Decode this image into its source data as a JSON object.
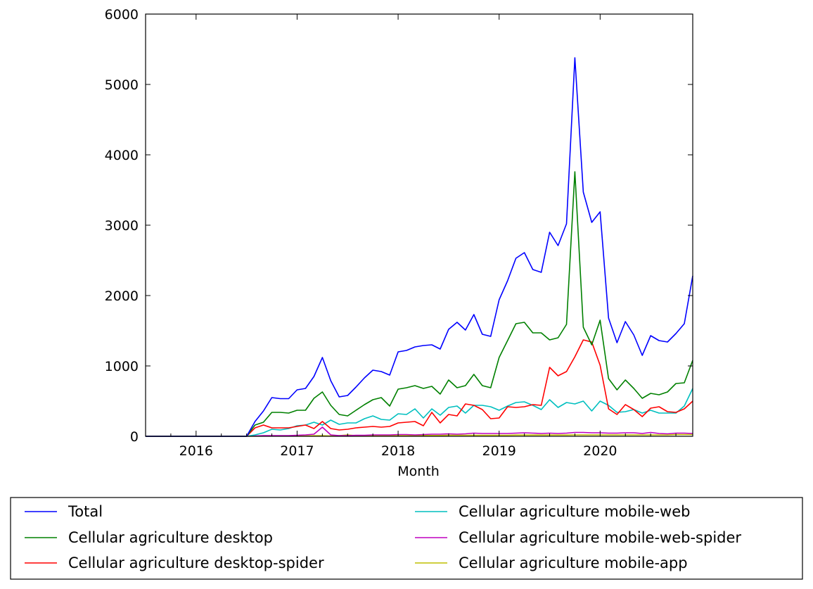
{
  "chart_data": {
    "type": "line",
    "title": "",
    "xlabel": "Month",
    "ylabel": "",
    "ylim": [
      0,
      6000
    ],
    "yticks": [
      "0",
      "1000",
      "2000",
      "3000",
      "4000",
      "5000",
      "6000"
    ],
    "xticks": [
      {
        "label": "2016",
        "date": "2016-01"
      },
      {
        "label": "2017",
        "date": "2017-01"
      },
      {
        "label": "2018",
        "date": "2018-01"
      },
      {
        "label": "2019",
        "date": "2019-01"
      },
      {
        "label": "2020",
        "date": "2020-01"
      }
    ],
    "xlim": [
      "2015-07",
      "2020-12"
    ],
    "grid": false,
    "legend_placement": "below, two columns",
    "x_start": "2015-07",
    "frequency": "monthly",
    "series": [
      {
        "name": "Total",
        "color": "#0000ff",
        "values": [
          0,
          0,
          0,
          0,
          0,
          0,
          0,
          0,
          0,
          0,
          0,
          0,
          0,
          210,
          360,
          550,
          535,
          535,
          660,
          680,
          850,
          1120,
          790,
          560,
          580,
          700,
          830,
          940,
          920,
          870,
          1200,
          1220,
          1270,
          1290,
          1300,
          1240,
          1520,
          1620,
          1510,
          1730,
          1450,
          1420,
          1940,
          2210,
          2530,
          2610,
          2370,
          2330,
          2900,
          2710,
          3020,
          5380,
          3470,
          3040,
          3190,
          1680,
          1330,
          1630,
          1440,
          1150,
          1430,
          1360,
          1340,
          1460,
          1600,
          2280
        ]
      },
      {
        "name": "Cellular agriculture desktop",
        "color": "#008000",
        "values": [
          0,
          0,
          0,
          0,
          0,
          0,
          0,
          0,
          0,
          0,
          0,
          0,
          0,
          160,
          200,
          340,
          340,
          330,
          370,
          370,
          540,
          630,
          440,
          310,
          290,
          370,
          450,
          520,
          550,
          430,
          670,
          690,
          720,
          680,
          710,
          600,
          800,
          690,
          720,
          880,
          720,
          690,
          1120,
          1360,
          1600,
          1620,
          1470,
          1470,
          1370,
          1400,
          1590,
          3760,
          1550,
          1300,
          1650,
          820,
          660,
          800,
          680,
          540,
          610,
          590,
          630,
          750,
          760,
          1080
        ]
      },
      {
        "name": "Cellular agriculture desktop-spider",
        "color": "#ff0000",
        "values": [
          0,
          0,
          0,
          0,
          0,
          0,
          0,
          0,
          0,
          0,
          0,
          0,
          0,
          120,
          160,
          120,
          120,
          120,
          140,
          160,
          110,
          210,
          110,
          90,
          100,
          120,
          130,
          140,
          130,
          140,
          190,
          200,
          210,
          150,
          340,
          190,
          310,
          290,
          460,
          440,
          380,
          250,
          260,
          420,
          410,
          420,
          450,
          440,
          980,
          860,
          920,
          1130,
          1370,
          1340,
          1010,
          390,
          310,
          450,
          380,
          280,
          400,
          420,
          350,
          340,
          390,
          500
        ]
      },
      {
        "name": "Cellular agriculture mobile-web",
        "color": "#00bfbf",
        "values": [
          0,
          0,
          0,
          0,
          0,
          0,
          0,
          0,
          0,
          0,
          0,
          0,
          0,
          20,
          50,
          100,
          90,
          110,
          150,
          160,
          200,
          160,
          230,
          170,
          190,
          190,
          250,
          290,
          240,
          230,
          320,
          310,
          390,
          260,
          390,
          300,
          410,
          430,
          330,
          440,
          440,
          420,
          370,
          430,
          480,
          490,
          440,
          380,
          520,
          410,
          480,
          460,
          500,
          360,
          500,
          440,
          340,
          350,
          380,
          330,
          370,
          330,
          330,
          330,
          430,
          680
        ]
      },
      {
        "name": "Cellular agriculture mobile-web-spider",
        "color": "#bf00bf",
        "values": [
          0,
          0,
          0,
          0,
          0,
          0,
          0,
          0,
          0,
          0,
          0,
          0,
          0,
          5,
          10,
          10,
          10,
          10,
          15,
          20,
          30,
          130,
          20,
          10,
          10,
          15,
          15,
          20,
          20,
          20,
          25,
          25,
          20,
          25,
          30,
          30,
          35,
          30,
          35,
          45,
          40,
          40,
          40,
          40,
          45,
          50,
          45,
          40,
          45,
          40,
          45,
          55,
          55,
          50,
          50,
          45,
          45,
          50,
          50,
          40,
          55,
          40,
          35,
          45,
          45,
          40
        ]
      },
      {
        "name": "Cellular agriculture mobile-app",
        "color": "#bfbf00",
        "values": [
          0,
          0,
          0,
          0,
          0,
          0,
          0,
          0,
          0,
          0,
          0,
          0,
          0,
          2,
          3,
          5,
          5,
          5,
          5,
          5,
          8,
          8,
          5,
          10,
          20,
          10,
          8,
          8,
          10,
          10,
          10,
          10,
          12,
          12,
          12,
          12,
          15,
          15,
          15,
          15,
          15,
          15,
          15,
          15,
          18,
          18,
          18,
          18,
          18,
          18,
          18,
          20,
          20,
          20,
          20,
          20,
          20,
          20,
          20,
          20,
          20,
          20,
          20,
          25,
          25,
          25
        ]
      }
    ]
  }
}
